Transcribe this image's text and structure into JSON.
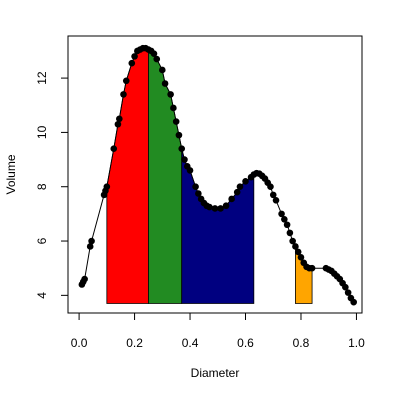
{
  "chart_data": {
    "type": "line",
    "title": "",
    "xlabel": "Diameter",
    "ylabel": "Volume",
    "xlim": [
      -0.04,
      1.02
    ],
    "ylim": [
      3.35,
      13.55
    ],
    "xticks": [
      0.0,
      0.2,
      0.4,
      0.6,
      0.8,
      1.0
    ],
    "xtick_labels": [
      "0.0",
      "0.2",
      "0.4",
      "0.6",
      "0.8",
      "1.0"
    ],
    "yticks": [
      4,
      6,
      8,
      10,
      12
    ],
    "ytick_labels": [
      "4",
      "6",
      "8",
      "10",
      "12"
    ],
    "grid": false,
    "baseline": 3.7,
    "series": [
      {
        "x": [
          0.01,
          0.015,
          0.02,
          0.04,
          0.045,
          0.09,
          0.095,
          0.1,
          0.125,
          0.14,
          0.145,
          0.16,
          0.17,
          0.19,
          0.2,
          0.21,
          0.22,
          0.23,
          0.24,
          0.25,
          0.26,
          0.27,
          0.28,
          0.3,
          0.31,
          0.33,
          0.34,
          0.35,
          0.36,
          0.37,
          0.38,
          0.39,
          0.4,
          0.42,
          0.43,
          0.44,
          0.45,
          0.46,
          0.47,
          0.49,
          0.51,
          0.53,
          0.55,
          0.57,
          0.58,
          0.6,
          0.62,
          0.63,
          0.64,
          0.65,
          0.66,
          0.67,
          0.68,
          0.69,
          0.7,
          0.71,
          0.73,
          0.74,
          0.75,
          0.76,
          0.77,
          0.78,
          0.79,
          0.8,
          0.81,
          0.82,
          0.83,
          0.84,
          0.89,
          0.9,
          0.91,
          0.92,
          0.93,
          0.94,
          0.95,
          0.96,
          0.97,
          0.98,
          0.99
        ],
        "y": [
          4.4,
          4.5,
          4.6,
          5.8,
          6.0,
          7.7,
          7.85,
          8.0,
          9.4,
          10.3,
          10.5,
          11.4,
          11.9,
          12.55,
          12.8,
          13.0,
          13.05,
          13.1,
          13.1,
          13.05,
          13.0,
          12.9,
          12.7,
          12.3,
          11.8,
          11.4,
          10.9,
          10.4,
          9.9,
          9.4,
          9.0,
          8.75,
          8.6,
          8.0,
          7.75,
          7.55,
          7.4,
          7.3,
          7.25,
          7.2,
          7.2,
          7.3,
          7.55,
          7.8,
          8.0,
          8.2,
          8.35,
          8.45,
          8.5,
          8.48,
          8.4,
          8.3,
          8.15,
          8.0,
          7.7,
          7.5,
          7.0,
          6.8,
          6.6,
          6.3,
          6.0,
          5.8,
          5.6,
          5.4,
          5.2,
          5.05,
          5.0,
          5.0,
          5.0,
          4.95,
          4.9,
          4.8,
          4.7,
          4.6,
          4.45,
          4.3,
          4.1,
          3.9,
          3.75
        ]
      }
    ],
    "shaded_regions": [
      {
        "x_start": 0.1,
        "x_end": 0.25,
        "color": "#ff0000"
      },
      {
        "x_start": 0.25,
        "x_end": 0.37,
        "color": "#228b22"
      },
      {
        "x_start": 0.37,
        "x_end": 0.63,
        "color": "#000080"
      },
      {
        "x_start": 0.78,
        "x_end": 0.84,
        "color": "#ffa500"
      }
    ]
  }
}
